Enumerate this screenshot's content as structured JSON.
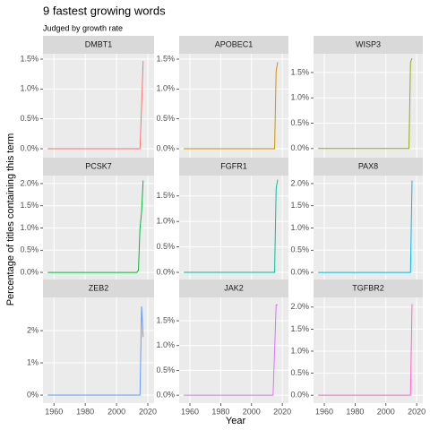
{
  "chart_data": {
    "type": "line",
    "title": "9 fastest growing words",
    "subtitle": "Judged by growth rate",
    "xlabel": "Year",
    "ylabel": "Percentage of titles containing this term",
    "xlim": [
      1953,
      2024
    ],
    "xticks": [
      1960,
      1980,
      2000,
      2020
    ],
    "grid": true,
    "panels": [
      {
        "type": "line",
        "name": "DMBT1",
        "color": "#F8766D",
        "x": [
          1956,
          2013,
          2014,
          2015,
          2016,
          2017
        ],
        "values": [
          0,
          0,
          0,
          0,
          0.7,
          1.47
        ],
        "ylim": [
          -0.15,
          1.59
        ],
        "yticks": [
          {
            "value": 0,
            "label": "0.0%"
          },
          {
            "value": 0.5,
            "label": "0.5%"
          },
          {
            "value": 1,
            "label": "1.0%"
          },
          {
            "value": 1.5,
            "label": "1.5%"
          }
        ]
      },
      {
        "type": "line",
        "name": "APOBEC1",
        "color": "#D39200",
        "x": [
          1956,
          2013,
          2014,
          2015,
          2016,
          2017
        ],
        "values": [
          0,
          0,
          0,
          0,
          1.3,
          1.45
        ],
        "ylim": [
          -0.15,
          1.59
        ],
        "yticks": [
          {
            "value": 0,
            "label": "0.0%"
          },
          {
            "value": 0.5,
            "label": "0.5%"
          },
          {
            "value": 1,
            "label": "1.0%"
          },
          {
            "value": 1.5,
            "label": "1.5%"
          }
        ]
      },
      {
        "type": "line",
        "name": "WISP3",
        "color": "#93AA00",
        "x": [
          1956,
          2013,
          2014,
          2015,
          2016,
          2017
        ],
        "values": [
          0,
          0,
          0,
          0,
          1.7,
          1.78
        ],
        "ylim": [
          -0.18,
          1.87
        ],
        "yticks": [
          {
            "value": 0,
            "label": "0.0%"
          },
          {
            "value": 0.5,
            "label": "0.5%"
          },
          {
            "value": 1,
            "label": "1.0%"
          },
          {
            "value": 1.5,
            "label": "1.5%"
          }
        ]
      },
      {
        "type": "line",
        "name": "PCSK7",
        "color": "#00BA38",
        "x": [
          1956,
          2013,
          2014,
          2015,
          2016,
          2017
        ],
        "values": [
          0,
          0,
          0.05,
          1.0,
          1.35,
          2.07
        ],
        "ylim": [
          -0.16,
          2.18
        ],
        "yticks": [
          {
            "value": 0,
            "label": "0.0%"
          },
          {
            "value": 0.5,
            "label": "0.5%"
          },
          {
            "value": 1,
            "label": "1.0%"
          },
          {
            "value": 1.5,
            "label": "1.5%"
          },
          {
            "value": 2,
            "label": "2.0%"
          }
        ]
      },
      {
        "type": "line",
        "name": "FGFR1",
        "color": "#00C19F",
        "x": [
          1956,
          2013,
          2014,
          2015,
          2016,
          2017
        ],
        "values": [
          0,
          0,
          0,
          0,
          1.65,
          1.82
        ],
        "ylim": [
          -0.14,
          1.9
        ],
        "yticks": [
          {
            "value": 0,
            "label": "0.0%"
          },
          {
            "value": 0.5,
            "label": "0.5%"
          },
          {
            "value": 1,
            "label": "1.0%"
          },
          {
            "value": 1.5,
            "label": "1.5%"
          }
        ]
      },
      {
        "type": "line",
        "name": "PAX8",
        "color": "#00B9E3",
        "x": [
          1956,
          2013,
          2014,
          2015,
          2016,
          2017
        ],
        "values": [
          0,
          0,
          0,
          0,
          0,
          2.07
        ],
        "ylim": [
          -0.16,
          2.18
        ],
        "yticks": [
          {
            "value": 0,
            "label": "0.0%"
          },
          {
            "value": 0.5,
            "label": "0.5%"
          },
          {
            "value": 1,
            "label": "1.0%"
          },
          {
            "value": 1.5,
            "label": "1.5%"
          },
          {
            "value": 2,
            "label": "2.0%"
          }
        ]
      },
      {
        "type": "line",
        "name": "ZEB2",
        "color": "#619CFF",
        "x": [
          1956,
          2013,
          2014,
          2015,
          2016,
          2017
        ],
        "values": [
          0,
          0,
          0,
          0,
          2.75,
          1.8
        ],
        "ylim": [
          -0.25,
          3.03
        ],
        "yticks": [
          {
            "value": 0,
            "label": "0%"
          },
          {
            "value": 1,
            "label": "1%"
          },
          {
            "value": 2,
            "label": "2%"
          }
        ]
      },
      {
        "type": "line",
        "name": "JAK2",
        "color": "#DB72FB",
        "x": [
          1956,
          2013,
          2014,
          2015,
          2016,
          2017
        ],
        "values": [
          0,
          0,
          0,
          0.9,
          1.82,
          1.82
        ],
        "ylim": [
          -0.16,
          1.97
        ],
        "yticks": [
          {
            "value": 0,
            "label": "0.0%"
          },
          {
            "value": 0.5,
            "label": "0.5%"
          },
          {
            "value": 1,
            "label": "1.0%"
          },
          {
            "value": 1.5,
            "label": "1.5%"
          }
        ]
      },
      {
        "type": "line",
        "name": "TGFBR2",
        "color": "#FF61C3",
        "x": [
          1956,
          2013,
          2014,
          2015,
          2016,
          2017
        ],
        "values": [
          0,
          0,
          0,
          0,
          0,
          2.07
        ],
        "ylim": [
          -0.18,
          2.22
        ],
        "yticks": [
          {
            "value": 0,
            "label": "0.0%"
          },
          {
            "value": 0.5,
            "label": "0.5%"
          },
          {
            "value": 1,
            "label": "1.0%"
          },
          {
            "value": 1.5,
            "label": "1.5%"
          },
          {
            "value": 2,
            "label": "2.0%"
          }
        ]
      }
    ]
  }
}
